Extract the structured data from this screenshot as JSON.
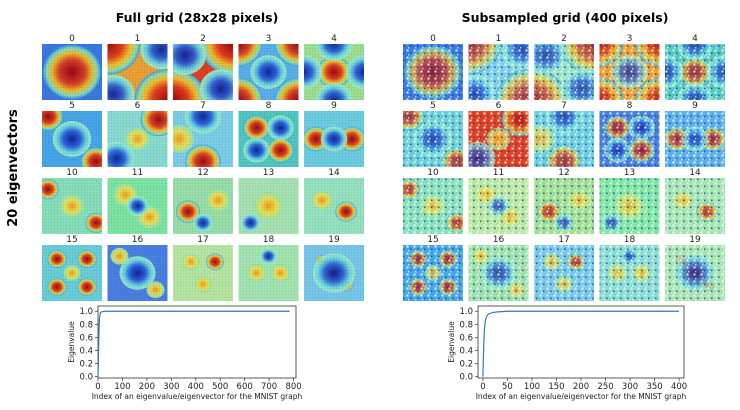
{
  "left_panel": {
    "title": "Full grid (28x28 pixels)",
    "tile_labels": [
      "0",
      "1",
      "2",
      "3",
      "4",
      "5",
      "6",
      "7",
      "8",
      "9",
      "10",
      "11",
      "12",
      "13",
      "14",
      "15",
      "16",
      "17",
      "18",
      "19"
    ]
  },
  "right_panel": {
    "title": "Subsampled grid (400 pixels)",
    "tile_labels": [
      "0",
      "1",
      "2",
      "3",
      "4",
      "5",
      "6",
      "7",
      "8",
      "9",
      "10",
      "11",
      "12",
      "13",
      "14",
      "15",
      "16",
      "17",
      "18",
      "19"
    ]
  },
  "row_label": "20 eigenvectors",
  "colors": {
    "low": "#1a3fbf",
    "mid": "#7fe0c8",
    "high": "#c81414",
    "curve": "#3a78b5"
  },
  "chart_data": [
    {
      "type": "line",
      "xlabel": "Index of an eigenvalue/eigenvector for the MNIST graph",
      "ylabel": "Eigenvalue",
      "xlim": [
        0,
        810
      ],
      "ylim": [
        -0.02,
        1.08
      ],
      "xticks": [
        "0",
        "100",
        "200",
        "300",
        "400",
        "500",
        "600",
        "700",
        "800"
      ],
      "yticks": [
        "0.0",
        "0.2",
        "0.4",
        "0.6",
        "0.8",
        "1.0"
      ],
      "x": [
        0,
        2,
        4,
        6,
        8,
        10,
        15,
        20,
        30,
        50,
        100,
        200,
        400,
        600,
        784
      ],
      "values": [
        0.0,
        0.35,
        0.7,
        0.88,
        0.95,
        0.98,
        0.99,
        0.995,
        1.0,
        1.0,
        1.0,
        1.0,
        1.0,
        1.0,
        1.0
      ]
    },
    {
      "type": "line",
      "xlabel": "Index of an eigenvalue/eigenvector for the MNIST graph",
      "ylabel": "Eigenvalue",
      "xlim": [
        -10,
        410
      ],
      "ylim": [
        -0.02,
        1.08
      ],
      "xticks": [
        "0",
        "50",
        "100",
        "150",
        "200",
        "250",
        "300",
        "350",
        "400"
      ],
      "yticks": [
        "0.0",
        "0.2",
        "0.4",
        "0.6",
        "0.8",
        "1.0"
      ],
      "x": [
        0,
        1,
        2,
        3,
        5,
        8,
        12,
        20,
        30,
        50,
        100,
        200,
        300,
        400
      ],
      "values": [
        0.0,
        0.3,
        0.55,
        0.72,
        0.86,
        0.93,
        0.96,
        0.98,
        0.99,
        1.0,
        1.0,
        1.0,
        1.0,
        1.0
      ]
    }
  ]
}
